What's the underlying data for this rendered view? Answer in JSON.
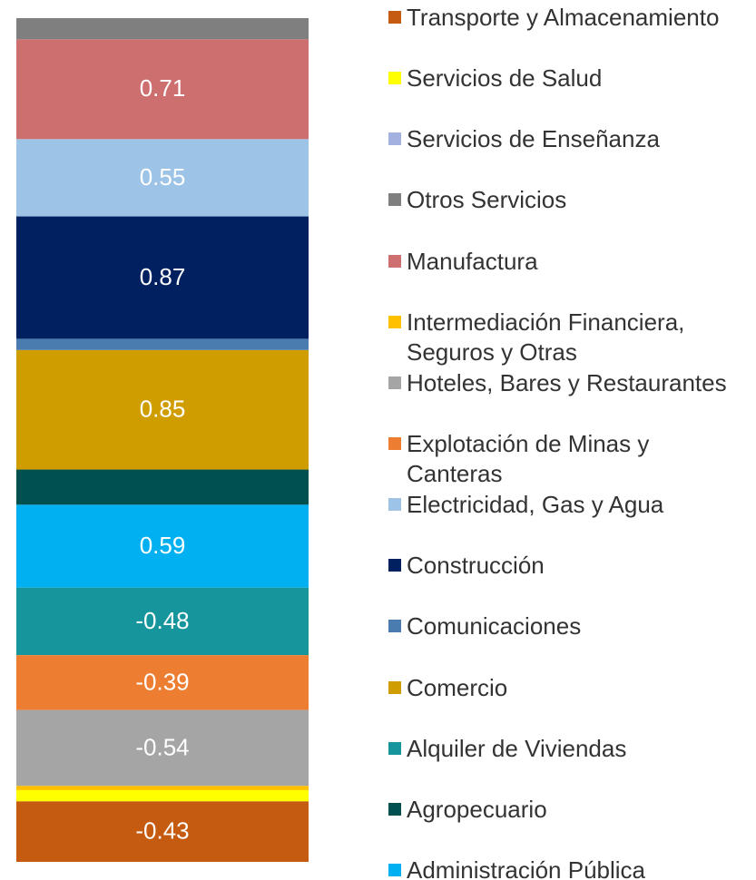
{
  "chart_data": {
    "type": "bar",
    "stacked": true,
    "categories": [
      null
    ],
    "legend": {
      "position": "right",
      "reversed": true
    },
    "series": [
      {
        "name": "Administración Pública",
        "color": "#00b0f0",
        "values": [
          0.59
        ],
        "show_label": true
      },
      {
        "name": "Agropecuario",
        "color": "#00504f",
        "values": [
          0.25
        ],
        "show_label": false
      },
      {
        "name": "Alquiler de Viviendas",
        "color": "#16969c",
        "values": [
          -0.48
        ],
        "show_label": true
      },
      {
        "name": "Comercio",
        "color": "#d09d00",
        "values": [
          0.85
        ],
        "show_label": true
      },
      {
        "name": "Comunicaciones",
        "color": "#4a7cb0",
        "values": [
          0.08
        ],
        "show_label": false
      },
      {
        "name": "Construcción",
        "color": "#002060",
        "values": [
          0.87
        ],
        "show_label": true
      },
      {
        "name": "Electricidad, Gas y Agua",
        "color": "#9dc3e6",
        "values": [
          0.55
        ],
        "show_label": true
      },
      {
        "name": "Explotación de Minas y Canteras",
        "color": "#ed7d31",
        "values": [
          -0.39
        ],
        "show_label": true
      },
      {
        "name": "Hoteles, Bares y Restaurantes",
        "color": "#a5a5a5",
        "values": [
          -0.54
        ],
        "show_label": true
      },
      {
        "name": "Intermediación Financiera, Seguros y Otras",
        "color": "#ffc000",
        "values": [
          -0.03
        ],
        "show_label": false
      },
      {
        "name": "Manufactura",
        "color": "#cd6f6f",
        "values": [
          0.71
        ],
        "show_label": true
      },
      {
        "name": "Otros Servicios",
        "color": "#7f7f7f",
        "values": [
          0.15
        ],
        "show_label": false
      },
      {
        "name": "Servicios de Enseñanza",
        "color": "#a3b1e0",
        "values": [
          0
        ],
        "show_label": false
      },
      {
        "name": "Servicios de Salud",
        "color": "#ffff00",
        "values": [
          -0.08
        ],
        "show_label": false
      },
      {
        "name": "Transporte y Almacenamiento",
        "color": "#c55a11",
        "values": [
          -0.43
        ],
        "show_label": true
      }
    ]
  }
}
